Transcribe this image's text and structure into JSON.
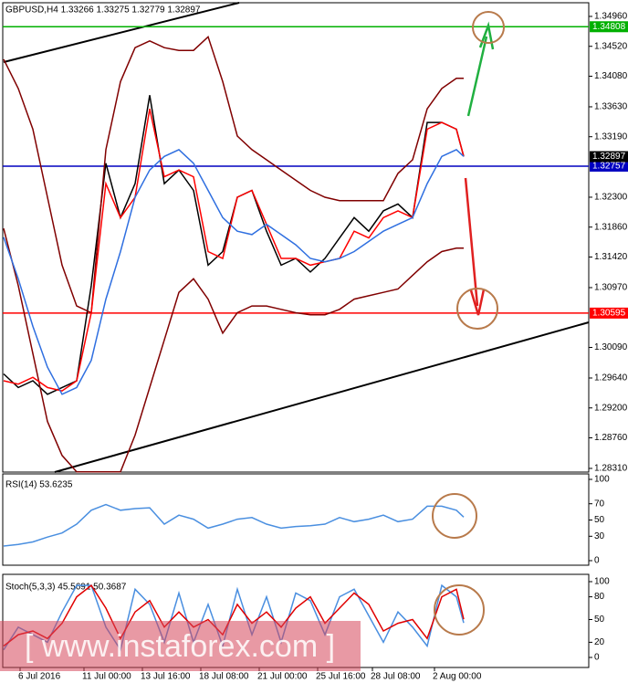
{
  "chart_data": [
    {
      "type": "line",
      "title": "GBPUSD,H4  1.33266 1.33275 1.32779 1.32897",
      "x": [
        0,
        4,
        8,
        12,
        16,
        20,
        24,
        28,
        32,
        36,
        40,
        44,
        48,
        52,
        56,
        60,
        64,
        68,
        72,
        76,
        80,
        84,
        88,
        92,
        96,
        100,
        104,
        108,
        112,
        116,
        120,
        124,
        126
      ],
      "xlim": [
        -1,
        160.25
      ],
      "ylim": [
        1.28256,
        1.35161
      ],
      "yticks": [
        {
          "value": 1.3496,
          "label": "1.34960"
        },
        {
          "value": 1.3452,
          "label": "1.34520"
        },
        {
          "value": 1.3408,
          "label": "1.34080"
        },
        {
          "value": 1.3363,
          "label": "1.33630"
        },
        {
          "value": 1.3319,
          "label": "1.33190"
        },
        {
          "value": 1.323,
          "label": "1.32300"
        },
        {
          "value": 1.3186,
          "label": "1.31860"
        },
        {
          "value": 1.3142,
          "label": "1.31420"
        },
        {
          "value": 1.3097,
          "label": "1.30970"
        },
        {
          "value": 1.3009,
          "label": "1.30090"
        },
        {
          "value": 1.2964,
          "label": "1.29640"
        },
        {
          "value": 1.292,
          "label": "1.29200"
        },
        {
          "value": 1.2876,
          "label": "1.28760"
        },
        {
          "value": 1.2831,
          "label": "1.28310"
        }
      ],
      "series": [
        {
          "color": "#000000",
          "values": [
            1.297,
            1.295,
            1.296,
            1.294,
            1.295,
            1.296,
            1.31,
            1.328,
            1.32,
            1.325,
            1.338,
            1.325,
            1.327,
            1.324,
            1.313,
            1.315,
            1.323,
            1.324,
            1.318,
            1.313,
            1.314,
            1.312,
            1.314,
            1.317,
            1.32,
            1.318,
            1.321,
            1.322,
            1.32,
            1.334,
            1.334,
            1.333,
            1.329
          ]
        },
        {
          "color": "#800000",
          "values": [
            1.3433,
            1.339,
            1.333,
            1.323,
            1.313,
            1.307,
            1.306,
            1.33,
            1.34,
            1.345,
            1.346,
            1.345,
            1.3446,
            1.3446,
            1.3466,
            1.34,
            1.332,
            1.33,
            1.3285,
            1.327,
            1.3255,
            1.324,
            1.323,
            1.3225,
            1.3225,
            1.3225,
            1.3225,
            1.3265,
            1.3285,
            1.336,
            1.339,
            1.3405,
            1.3405
          ]
        },
        {
          "color": "#800000",
          "values": [
            1.3184,
            1.31,
            1.3,
            1.29,
            1.285,
            1.2826,
            1.2826,
            1.2826,
            1.2826,
            1.288,
            1.295,
            1.302,
            1.309,
            1.311,
            1.308,
            1.303,
            1.306,
            1.307,
            1.307,
            1.3065,
            1.306,
            1.3057,
            1.3057,
            1.3065,
            1.308,
            1.3085,
            1.309,
            1.3095,
            1.3115,
            1.3135,
            1.315,
            1.3155,
            1.3155
          ]
        },
        {
          "color": "#ff0000",
          "values": [
            1.296,
            1.2955,
            1.2965,
            1.295,
            1.2945,
            1.296,
            1.306,
            1.325,
            1.32,
            1.323,
            1.336,
            1.326,
            1.327,
            1.326,
            1.315,
            1.314,
            1.323,
            1.324,
            1.319,
            1.314,
            1.314,
            1.313,
            1.3135,
            1.314,
            1.318,
            1.317,
            1.32,
            1.321,
            1.32,
            1.333,
            1.334,
            1.333,
            1.329
          ]
        },
        {
          "color": "#2f6fe0",
          "values": [
            1.3171,
            1.311,
            1.304,
            1.298,
            1.294,
            1.295,
            1.299,
            1.308,
            1.315,
            1.323,
            1.327,
            1.329,
            1.33,
            1.328,
            1.324,
            1.32,
            1.318,
            1.3175,
            1.319,
            1.3175,
            1.316,
            1.314,
            1.3135,
            1.314,
            1.315,
            1.3165,
            1.318,
            1.319,
            1.32,
            1.325,
            1.329,
            1.33,
            1.329
          ]
        }
      ],
      "levels": [
        {
          "value": 1.34808,
          "color": "#00b000"
        },
        {
          "value": 1.32757,
          "color": "#0000c0"
        },
        {
          "value": 1.30595,
          "color": "#ff0000"
        }
      ],
      "current_price": 1.32897
    },
    {
      "type": "line",
      "title": "RSI(14) 53.6235",
      "x": [
        0,
        4,
        8,
        12,
        16,
        20,
        24,
        28,
        32,
        36,
        40,
        44,
        48,
        52,
        56,
        60,
        64,
        68,
        72,
        76,
        80,
        84,
        88,
        92,
        96,
        100,
        104,
        108,
        112,
        116,
        120,
        124,
        126
      ],
      "xlim": [
        -1,
        160.25
      ],
      "ylim": [
        0,
        100
      ],
      "yticks": [
        100,
        70,
        50,
        30,
        0
      ],
      "series": [
        {
          "color": "#4a8fe0",
          "values": [
            18,
            20,
            23,
            29,
            34,
            45,
            62,
            69,
            62,
            64,
            65,
            45,
            56,
            51,
            40,
            45,
            51,
            53,
            45,
            40,
            42,
            43,
            45,
            53,
            48,
            51,
            56,
            48,
            51,
            67,
            67,
            62,
            53.6
          ]
        }
      ]
    },
    {
      "type": "line",
      "title": "Stoch(5,3,3) 45.5691 50.3687",
      "x": [
        0,
        4,
        8,
        12,
        16,
        20,
        24,
        28,
        32,
        36,
        40,
        44,
        48,
        52,
        56,
        60,
        64,
        68,
        72,
        76,
        80,
        84,
        88,
        92,
        96,
        100,
        104,
        108,
        112,
        116,
        120,
        124,
        126
      ],
      "xlim": [
        -1,
        160.25
      ],
      "ylim": [
        0,
        100
      ],
      "yticks": [
        100,
        80,
        50,
        20,
        0
      ],
      "xticks": [
        {
          "value": 4.5,
          "label": "6 Jul 2016"
        },
        {
          "value": 22,
          "label": "11 Jul 00:00"
        },
        {
          "value": 38,
          "label": "13 Jul 16:00"
        },
        {
          "value": 54,
          "label": "18 Jul 08:00"
        },
        {
          "value": 70,
          "label": "21 Jul 00:00"
        },
        {
          "value": 86,
          "label": "25 Jul 16:00"
        },
        {
          "value": 101,
          "label": "28 Jul 08:00"
        },
        {
          "value": 118,
          "label": "2 Aug 00:00"
        }
      ],
      "series": [
        {
          "color": "#4a8fe0",
          "values": [
            10,
            40,
            30,
            20,
            60,
            95,
            95,
            40,
            10,
            90,
            70,
            20,
            85,
            20,
            70,
            15,
            90,
            30,
            80,
            20,
            85,
            75,
            30,
            80,
            90,
            55,
            20,
            60,
            40,
            15,
            95,
            80,
            45.6
          ]
        },
        {
          "color": "#e00000",
          "values": [
            15,
            30,
            35,
            25,
            45,
            80,
            95,
            65,
            25,
            60,
            75,
            40,
            60,
            40,
            50,
            30,
            70,
            45,
            60,
            40,
            65,
            80,
            45,
            65,
            85,
            70,
            35,
            45,
            50,
            25,
            80,
            90,
            50.4
          ]
        }
      ]
    }
  ],
  "watermark": "[ www.instaforex.com ]"
}
